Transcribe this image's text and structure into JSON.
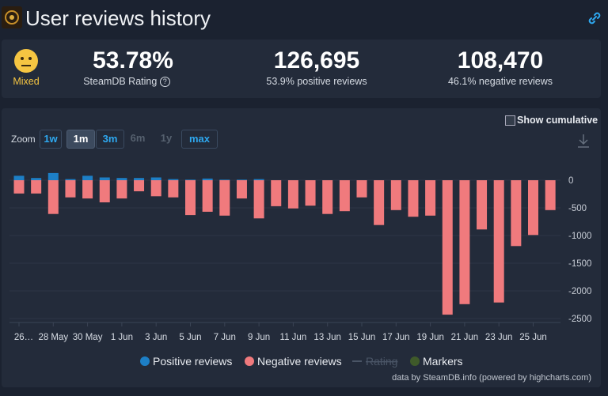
{
  "header": {
    "title": "User reviews history"
  },
  "stats": {
    "rating_label": "Mixed",
    "rating": "53.78%",
    "rating_caption": "SteamDB Rating",
    "positive": "126,695",
    "positive_caption": "53.9% positive reviews",
    "negative": "108,470",
    "negative_caption": "46.1% negative reviews"
  },
  "controls": {
    "zoom_label": "Zoom",
    "zoom": [
      "1w",
      "1m",
      "3m",
      "6m",
      "1y",
      "max"
    ],
    "cumulative": "Show cumulative"
  },
  "chart_data": {
    "type": "bar",
    "categories": [
      "26…",
      null,
      "28 May",
      null,
      "30 May",
      null,
      "1 Jun",
      null,
      "3 Jun",
      null,
      "5 Jun",
      null,
      "7 Jun",
      null,
      "9 Jun",
      null,
      "11 Jun",
      null,
      "13 Jun",
      null,
      "15 Jun",
      null,
      "17 Jun",
      null,
      "19 Jun",
      null,
      "21 Jun",
      null,
      "23 Jun",
      null,
      "25 Jun",
      null
    ],
    "series": [
      {
        "name": "Positive reviews",
        "color": "#1d7fc6",
        "values": [
          80,
          40,
          130,
          20,
          80,
          50,
          40,
          40,
          50,
          20,
          10,
          30,
          10,
          10,
          20,
          0,
          0,
          0,
          0,
          0,
          0,
          0,
          0,
          0,
          0,
          0,
          0,
          0,
          0,
          0,
          0,
          0
        ]
      },
      {
        "name": "Negative reviews",
        "color": "#f07a7d",
        "values": [
          -240,
          -240,
          -610,
          -310,
          -330,
          -400,
          -330,
          -200,
          -290,
          -310,
          -630,
          -570,
          -640,
          -330,
          -690,
          -470,
          -510,
          -460,
          -610,
          -560,
          -310,
          -810,
          -540,
          -660,
          -640,
          -2430,
          -2240,
          -890,
          -2210,
          -1190,
          -990,
          -540
        ]
      }
    ],
    "extra_legend": [
      {
        "name": "Rating",
        "color": "#4a5566",
        "disabled": true
      },
      {
        "name": "Markers",
        "color": "#3f5a2a"
      }
    ],
    "ylim": [
      -2500,
      400
    ],
    "yticks": [
      0,
      -500,
      -1000,
      -1500,
      -2000,
      -2500
    ],
    "grid": true,
    "stacked": true
  },
  "footer": {
    "credit": "data by SteamDB.info (powered by highcharts.com)"
  }
}
